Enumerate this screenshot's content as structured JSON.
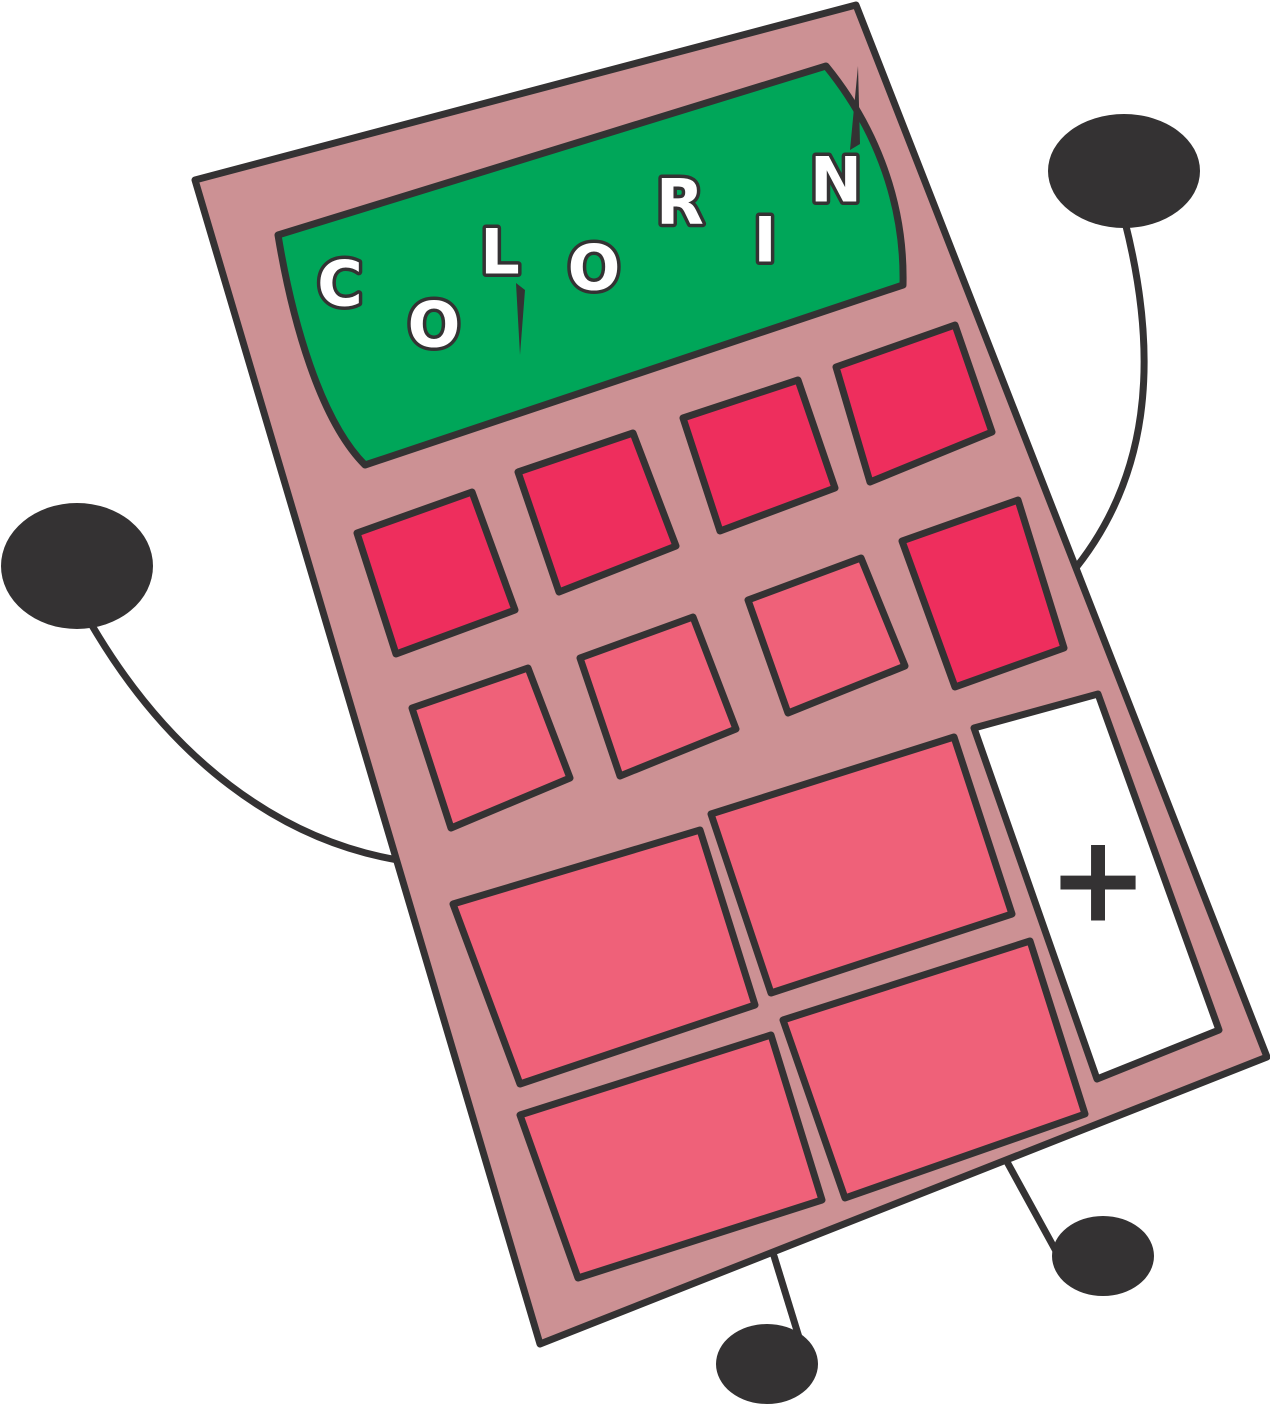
{
  "display": {
    "letters": [
      "C",
      "O",
      "L",
      "O",
      "R",
      "I",
      "N"
    ]
  },
  "plus_key": {
    "label": "+"
  },
  "colors": {
    "outline": "#343233",
    "body": "#cc9194",
    "display_screen": "#00a659",
    "key_dark": "#ee2e5d",
    "key_light": "#ef6179",
    "plus_key_face": "#ffffff"
  }
}
